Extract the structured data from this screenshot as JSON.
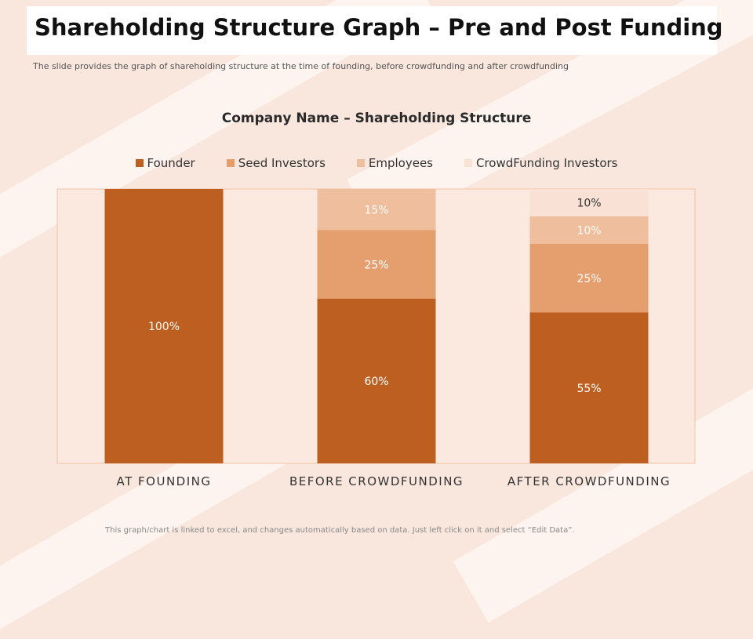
{
  "slide": {
    "title": "Shareholding Structure Graph – Pre and Post Funding",
    "subtitle": "The slide provides the graph of shareholding structure at the time of founding,  before crowdfunding  and after crowdfunding",
    "footer": "This graph/chart is linked to excel, and changes automatically based on data. Just left click on it and select “Edit Data”."
  },
  "chart_data": {
    "type": "bar",
    "stacked": true,
    "title": "Company Name – Shareholding Structure",
    "categories": [
      "AT FOUNDING",
      "BEFORE CROWDFUNDING",
      "AFTER CROWDFUNDING"
    ],
    "ylim": [
      0,
      100
    ],
    "unit": "%",
    "legend_position": "top",
    "grid": false,
    "series": [
      {
        "name": "Founder",
        "values": [
          100,
          60,
          55
        ],
        "color": "#bd5f20"
      },
      {
        "name": "Seed Investors",
        "values": [
          0,
          25,
          25
        ],
        "color": "#e59f6e"
      },
      {
        "name": "Employees",
        "values": [
          0,
          15,
          10
        ],
        "color": "#efbe9c"
      },
      {
        "name": "CrowdFunding Investors",
        "values": [
          0,
          0,
          10
        ],
        "color": "#f9e1d5"
      }
    ]
  }
}
